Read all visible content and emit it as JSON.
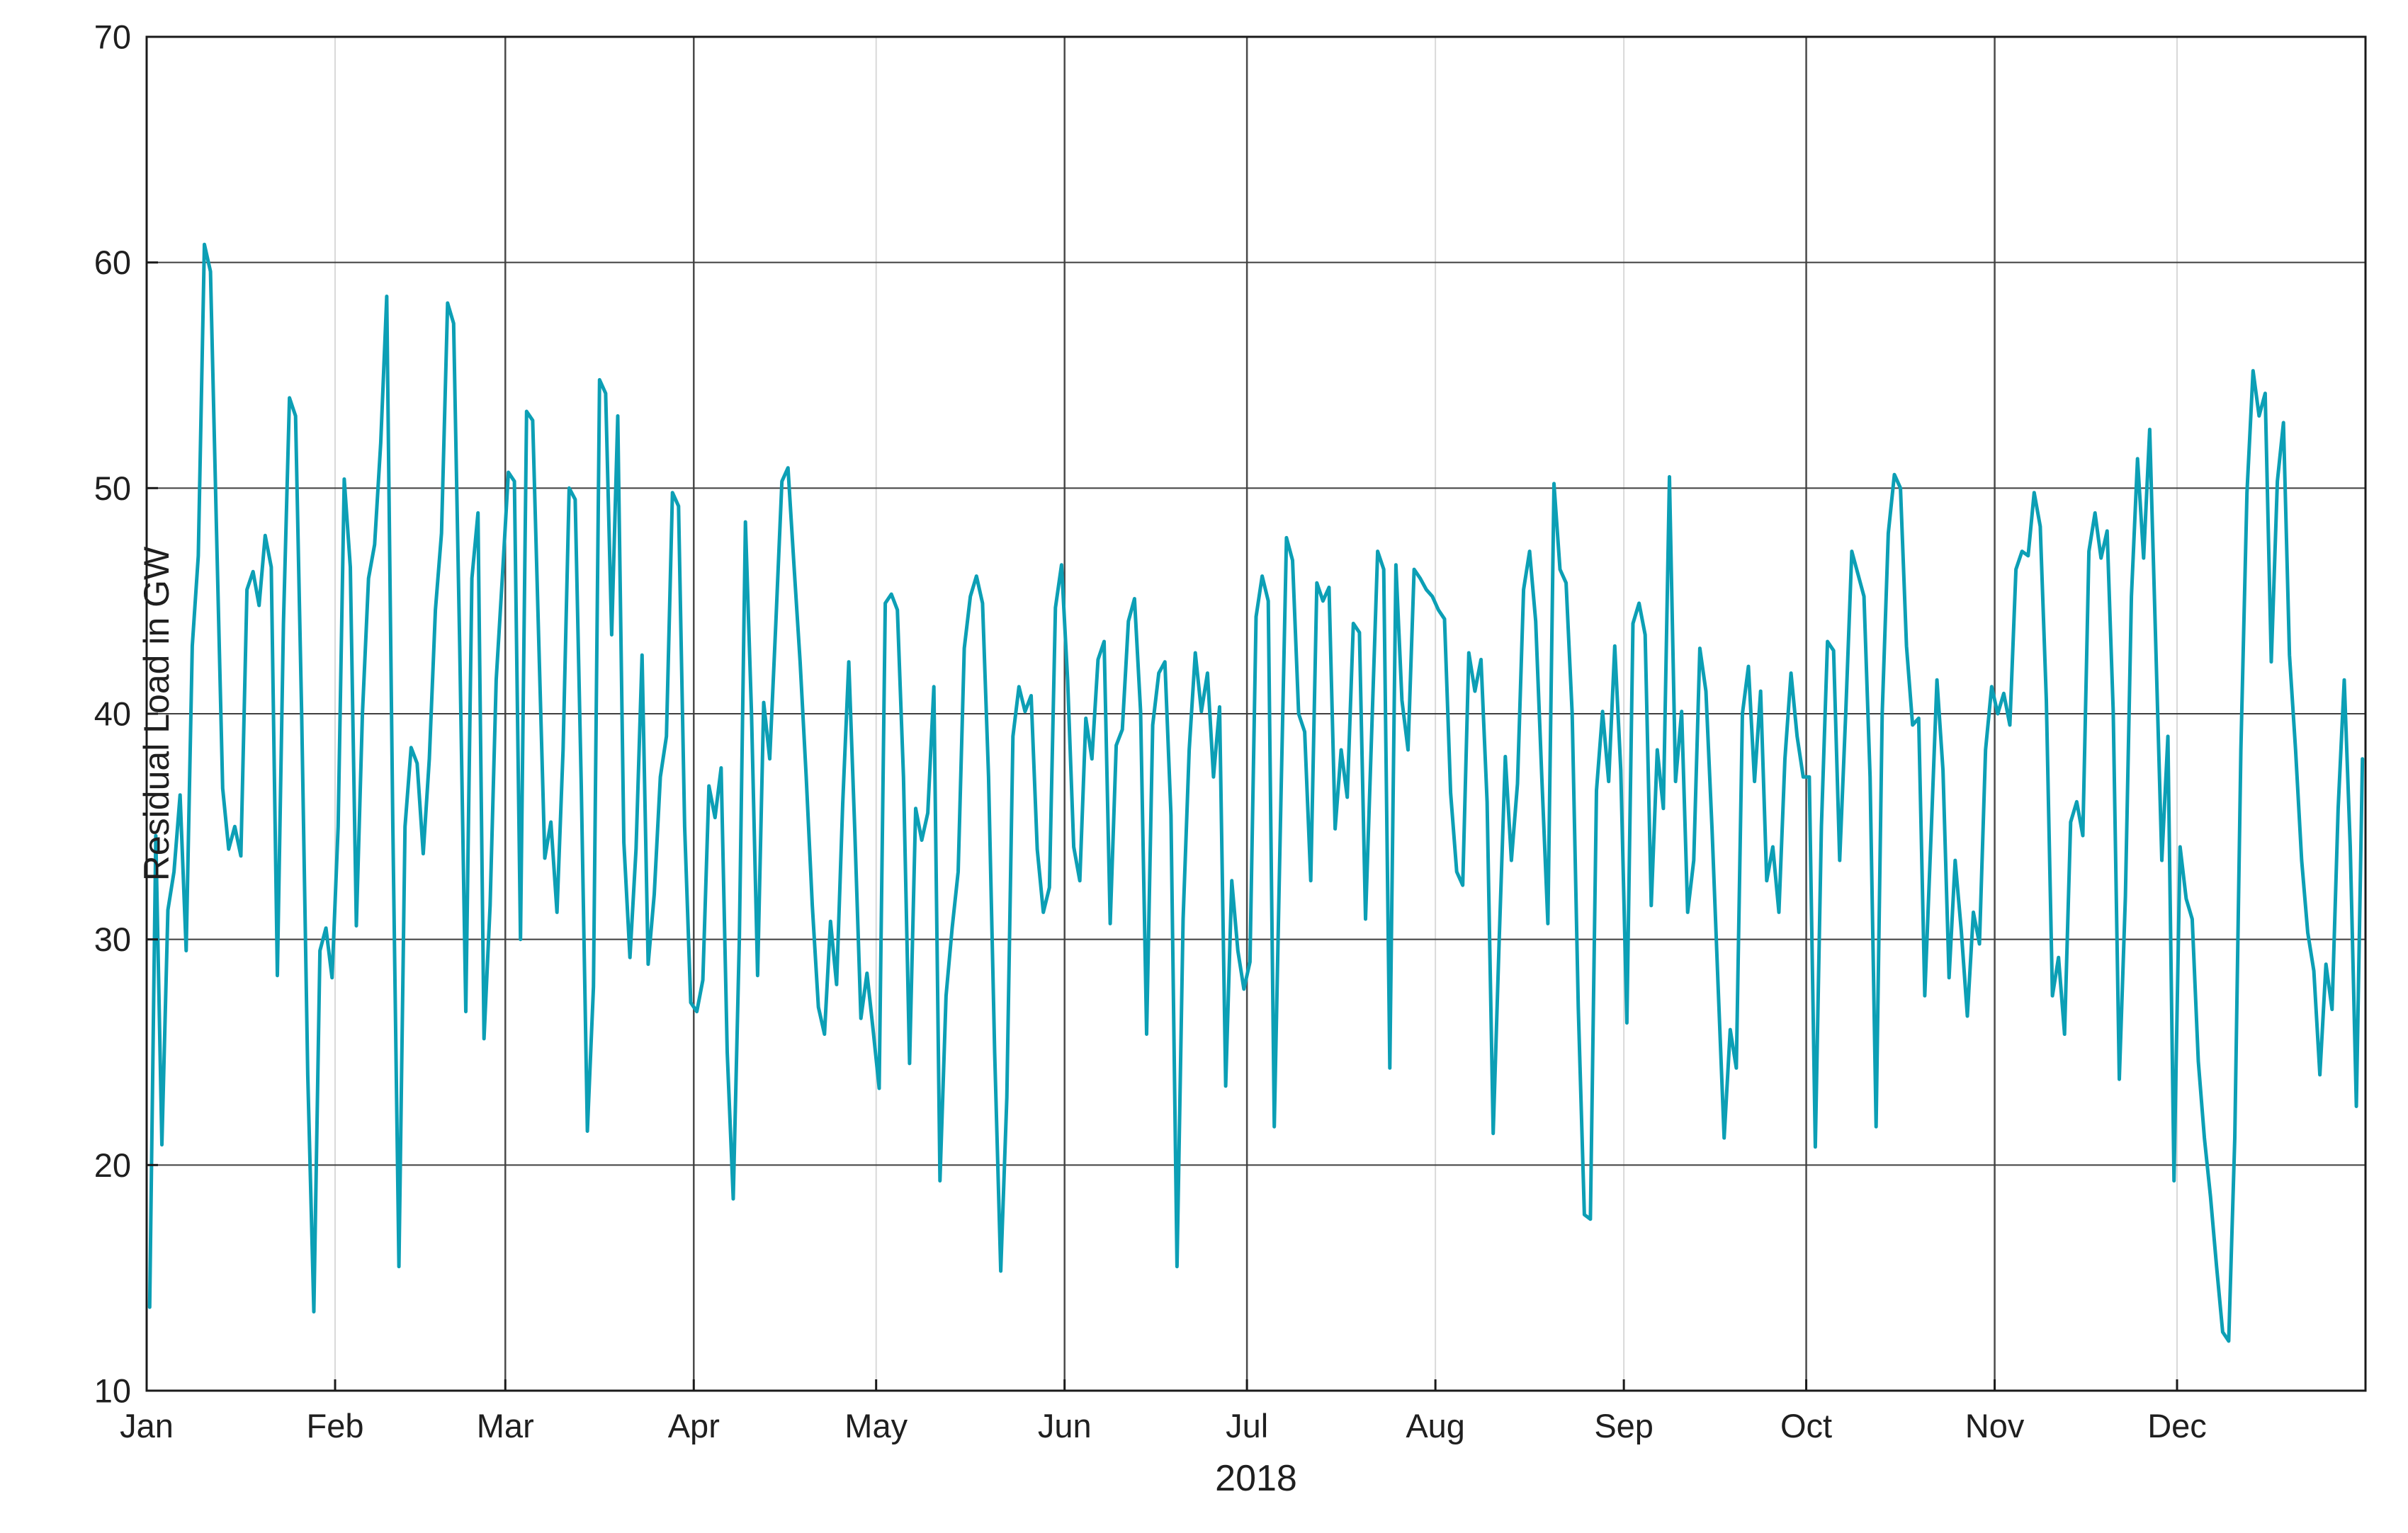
{
  "figure": {
    "xlabel": "2018",
    "ylabel": "Residual Load in GW"
  },
  "chart_data": {
    "type": "line",
    "title": "",
    "xlabel": "2018",
    "ylabel": "Residual Load in GW",
    "legend": "none",
    "grid": "on",
    "ylim": [
      10,
      70
    ],
    "y_ticks": [
      10,
      20,
      30,
      40,
      50,
      60,
      70
    ],
    "x_tick_labels": [
      "Jan",
      "Feb",
      "Mar",
      "Apr",
      "May",
      "Jun",
      "Jul",
      "Aug",
      "Sep",
      "Oct",
      "Nov",
      "Dec"
    ],
    "month_start_days": [
      0,
      31,
      59,
      90,
      120,
      151,
      181,
      212,
      243,
      273,
      304,
      334
    ],
    "days_in_year": 365,
    "line_color": "#0c9fb5",
    "series": [
      {
        "name": "Residual Load 2018",
        "unit": "GW",
        "sampling": "daily",
        "values": [
          13.7,
          34.6,
          20.9,
          31.3,
          33.0,
          36.4,
          29.5,
          43.0,
          47.0,
          60.8,
          59.6,
          48.0,
          36.7,
          34.0,
          35.0,
          33.7,
          45.5,
          46.3,
          44.8,
          47.9,
          46.5,
          28.4,
          44.0,
          54.0,
          53.2,
          40.0,
          24.0,
          13.5,
          29.5,
          30.5,
          28.3,
          35.0,
          50.4,
          46.5,
          30.6,
          40.0,
          46.0,
          47.5,
          52.0,
          58.5,
          35.0,
          15.5,
          35.0,
          38.5,
          37.8,
          33.8,
          38.0,
          44.6,
          48.0,
          58.2,
          57.3,
          43.0,
          26.8,
          46.0,
          48.9,
          25.6,
          31.5,
          41.5,
          46.0,
          50.7,
          50.3,
          30.0,
          53.4,
          53.0,
          43.2,
          33.6,
          35.2,
          31.2,
          38.4,
          50.0,
          49.5,
          36.8,
          21.5,
          27.9,
          54.8,
          54.2,
          43.5,
          53.2,
          34.3,
          29.2,
          34.0,
          42.6,
          28.9,
          32.0,
          37.2,
          39.0,
          49.8,
          49.2,
          35.0,
          27.2,
          26.8,
          28.2,
          36.8,
          35.4,
          37.6,
          25.0,
          18.5,
          30.0,
          48.5,
          40.0,
          28.4,
          40.5,
          38.0,
          44.0,
          50.3,
          50.9,
          46.5,
          42.3,
          37.2,
          31.5,
          27.0,
          25.8,
          30.8,
          28.0,
          36.0,
          42.3,
          34.7,
          26.5,
          28.5,
          26.0,
          23.4,
          44.9,
          45.3,
          44.6,
          37.2,
          24.5,
          35.8,
          34.4,
          35.6,
          41.2,
          19.3,
          27.5,
          30.5,
          33.0,
          42.9,
          45.2,
          46.1,
          44.9,
          37.2,
          25.0,
          15.3,
          23.0,
          39.0,
          41.2,
          40.1,
          40.8,
          34.0,
          31.2,
          32.3,
          44.7,
          46.6,
          41.5,
          34.1,
          32.6,
          39.8,
          38.0,
          42.4,
          43.2,
          30.7,
          38.6,
          39.3,
          44.1,
          45.1,
          40.1,
          25.8,
          39.5,
          41.8,
          42.3,
          35.5,
          15.5,
          30.9,
          38.4,
          42.7,
          40.1,
          41.8,
          37.2,
          40.3,
          23.5,
          32.6,
          29.5,
          27.8,
          29.0,
          44.3,
          46.1,
          45.0,
          21.7,
          35.0,
          47.8,
          46.8,
          40.0,
          39.2,
          32.6,
          45.8,
          45.0,
          45.6,
          34.9,
          38.4,
          36.3,
          44.0,
          43.6,
          30.9,
          39.0,
          47.2,
          46.4,
          24.3,
          46.6,
          40.6,
          38.4,
          46.4,
          46.0,
          45.5,
          45.2,
          44.6,
          44.2,
          36.5,
          33.0,
          32.4,
          42.7,
          41.0,
          42.4,
          36.1,
          21.4,
          30.0,
          38.1,
          33.5,
          36.9,
          45.5,
          47.2,
          44.1,
          37.2,
          30.7,
          50.2,
          46.4,
          45.8,
          40.0,
          27.0,
          17.8,
          17.6,
          36.6,
          40.1,
          37.0,
          43.0,
          37.5,
          26.3,
          44.0,
          44.9,
          43.5,
          31.5,
          38.4,
          35.8,
          50.5,
          37.0,
          40.1,
          31.2,
          33.5,
          42.9,
          41.0,
          34.9,
          28.0,
          21.2,
          26.0,
          24.3,
          40.0,
          42.1,
          37.0,
          41.0,
          32.6,
          34.1,
          31.2,
          38.0,
          41.8,
          39.0,
          37.2,
          37.2,
          20.8,
          35.0,
          43.2,
          42.8,
          33.5,
          40.0,
          47.2,
          46.2,
          45.2,
          37.2,
          21.7,
          40.0,
          48.0,
          50.6,
          50.0,
          43.0,
          39.5,
          39.8,
          27.5,
          34.4,
          41.5,
          37.5,
          28.3,
          33.5,
          30.4,
          26.6,
          31.2,
          29.8,
          38.4,
          41.2,
          40.0,
          40.9,
          39.5,
          46.4,
          47.2,
          47.0,
          49.8,
          48.3,
          40.6,
          27.5,
          29.2,
          25.8,
          35.2,
          36.1,
          34.6,
          47.2,
          48.9,
          46.9,
          48.1,
          40.1,
          23.8,
          31.9,
          45.2,
          51.3,
          46.9,
          52.6,
          43.0,
          33.5,
          39.0,
          19.3,
          34.1,
          31.8,
          30.9,
          24.6,
          21.2,
          18.6,
          15.5,
          12.6,
          12.2,
          21.2,
          38.4,
          49.8,
          55.2,
          53.2,
          54.2,
          42.3,
          50.3,
          52.9,
          42.6,
          38.4,
          33.5,
          30.3,
          28.6,
          24.0,
          28.9,
          26.9,
          35.8,
          41.5,
          34.1,
          22.6,
          38.0
        ]
      }
    ]
  }
}
